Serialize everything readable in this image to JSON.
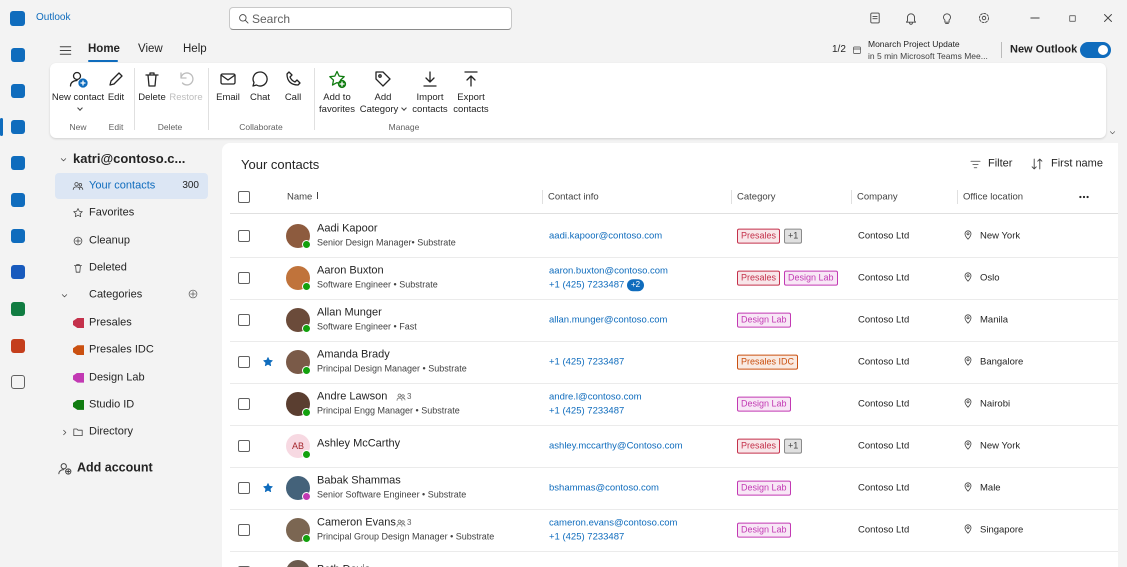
{
  "titlebar": {
    "app": "Outlook",
    "search": "Search"
  },
  "ribbon": {
    "tabs": [
      "Home",
      "View",
      "Help"
    ],
    "active_tab": 0,
    "groups": [
      {
        "name": "New",
        "buttons": [
          {
            "label": "New contact",
            "menu": true
          }
        ]
      },
      {
        "name": "Edit",
        "buttons": [
          {
            "label": "Edit"
          }
        ]
      },
      {
        "name": "Delete",
        "buttons": [
          {
            "label": "Delete"
          },
          {
            "label": "Restore",
            "disabled": true
          }
        ]
      },
      {
        "name": "Collaborate",
        "buttons": [
          {
            "label": "Email"
          },
          {
            "label": "Chat"
          },
          {
            "label": "Call"
          }
        ]
      },
      {
        "name": "Manage",
        "buttons": [
          {
            "label": "Add to favorites"
          },
          {
            "label": "Add Category",
            "menu": true
          },
          {
            "label": "Import contacts"
          },
          {
            "label": "Export contacts"
          }
        ]
      }
    ],
    "reminder": {
      "count": "1/2",
      "title": "Monarch Project Update",
      "detail": "in 5 min Microsoft Teams Mee..."
    },
    "toggle": "New Outlook"
  },
  "sidebar": {
    "account": "katri@contoso.c...",
    "items": [
      {
        "label": "Your contacts",
        "count": 300,
        "selected": true
      },
      {
        "label": "Favorites"
      },
      {
        "label": "Cleanup"
      },
      {
        "label": "Deleted"
      }
    ],
    "categories": {
      "label": "Categories",
      "items": [
        {
          "label": "Presales",
          "color": "#c4314b"
        },
        {
          "label": "Presales IDC",
          "color": "#ca5010"
        },
        {
          "label": "Design Lab",
          "color": "#c239b3"
        },
        {
          "label": "Studio ID",
          "color": "#107c10"
        }
      ]
    },
    "directory": "Directory",
    "add_account": "Add account"
  },
  "contacts": {
    "title": "Your contacts",
    "filter": "Filter",
    "sort": "First name",
    "columns": [
      "Name",
      "Contact info",
      "Category",
      "Company",
      "Office location"
    ],
    "rows": [
      {
        "name": "Aadi Kapoor",
        "title": "Senior Design Manager• Substrate",
        "contact": [
          "aadi.kapoor@contoso.com"
        ],
        "categories": [
          "Presales"
        ],
        "more": "+1",
        "company": "Contoso Ltd",
        "location": "New York",
        "presence": "#13a10e"
      },
      {
        "name": "Aaron Buxton",
        "title": "Software Engineer • Substrate",
        "contact": [
          "aaron.buxton@contoso.com",
          "+1 (425) 7233487"
        ],
        "contact_more": "+2",
        "categories": [
          "Presales",
          "Design Lab"
        ],
        "company": "Contoso Ltd",
        "location": "Oslo",
        "presence": "#13a10e"
      },
      {
        "name": "Allan Munger",
        "title": "Software Engineer • Fast",
        "contact": [
          "allan.munger@contoso.com"
        ],
        "categories": [
          "Design Lab"
        ],
        "company": "Contoso Ltd",
        "location": "Manila",
        "presence": "#13a10e"
      },
      {
        "name": "Amanda Brady",
        "title": "Principal Design Manager • Substrate",
        "contact": [
          "+1 (425) 7233487"
        ],
        "categories": [
          "Presales IDC"
        ],
        "company": "Contoso Ltd",
        "location": "Bangalore",
        "starred": true,
        "presence": "#13a10e"
      },
      {
        "name": "Andre Lawson",
        "members": 3,
        "title": "Principal Engg Manager • Substrate",
        "contact": [
          "andre.l@contoso.com",
          "+1 (425) 7233487"
        ],
        "categories": [
          "Design Lab"
        ],
        "company": "Contoso Ltd",
        "location": "Nairobi",
        "presence": "#13a10e"
      },
      {
        "name": "Ashley McCarthy",
        "initials": "AB",
        "contact": [
          "ashley.mccarthy@Contoso.com"
        ],
        "categories": [
          "Presales"
        ],
        "more": "+1",
        "company": "Contoso Ltd",
        "location": "New York",
        "presence": "#13a10e"
      },
      {
        "name": "Babak Shammas",
        "title": "Senior Software Engineer • Substrate",
        "contact": [
          "bshammas@contoso.com"
        ],
        "categories": [
          "Design Lab"
        ],
        "company": "Contoso Ltd",
        "location": "Male",
        "starred": true,
        "presence": "#c239b3"
      },
      {
        "name": "Cameron Evans",
        "members": 3,
        "title": "Principal Group Design Manager • Substrate",
        "contact": [
          "cameron.evans@contoso.com",
          "+1 (425) 7233487"
        ],
        "categories": [
          "Design Lab"
        ],
        "company": "Contoso Ltd",
        "location": "Singapore",
        "presence": "#13a10e"
      },
      {
        "name": "Beth Davis",
        "contact": [],
        "categories": []
      }
    ]
  }
}
